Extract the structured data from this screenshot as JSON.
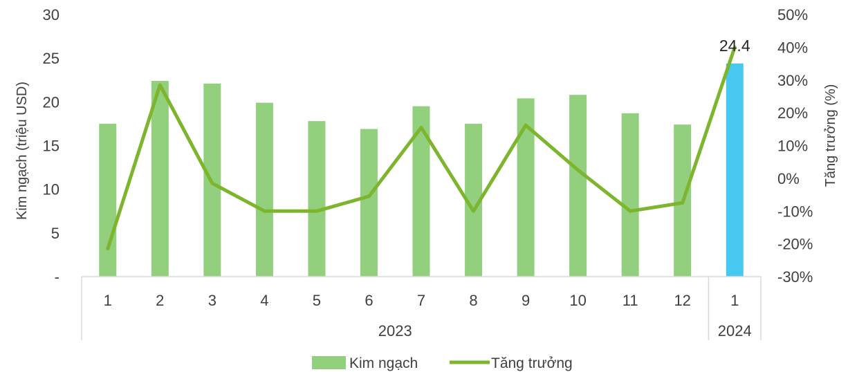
{
  "chart_data": {
    "type": "bar",
    "categories": [
      "1",
      "2",
      "3",
      "4",
      "5",
      "6",
      "7",
      "8",
      "9",
      "10",
      "11",
      "12",
      "1"
    ],
    "category_groups": [
      {
        "label": "2023",
        "span": 12
      },
      {
        "label": "2024",
        "span": 1
      }
    ],
    "series": [
      {
        "name": "Kim ngạch",
        "type": "bar",
        "axis": "left",
        "values": [
          17.5,
          22.4,
          22.1,
          19.9,
          17.8,
          16.9,
          19.5,
          17.5,
          20.4,
          20.8,
          18.7,
          17.4,
          24.4
        ],
        "color": "#92D07E",
        "highlight_color": "#47C8F0",
        "highlight_index": 12
      },
      {
        "name": "Tăng trưởng",
        "type": "line",
        "axis": "right",
        "values": [
          -21.5,
          28.5,
          -1.5,
          -10,
          -10,
          -5.5,
          15.5,
          -10,
          16.2,
          2.5,
          -10,
          -7.5,
          40
        ],
        "color": "#7DB52E"
      }
    ],
    "data_labels": [
      {
        "index": 12,
        "text": "24.4"
      }
    ],
    "ylabel": "Kim ngạch (triệu USD)",
    "y2label": "Tăng trưởng (%)",
    "ylim": [
      0,
      30
    ],
    "y2lim": [
      -30,
      50
    ],
    "yticks": [
      "-",
      "5",
      "10",
      "15",
      "20",
      "25",
      "30"
    ],
    "y2ticks": [
      "-30%",
      "-20%",
      "-10%",
      "0%",
      "10%",
      "20%",
      "30%",
      "40%",
      "50%"
    ],
    "legend_position": "bottom",
    "grid": false
  }
}
